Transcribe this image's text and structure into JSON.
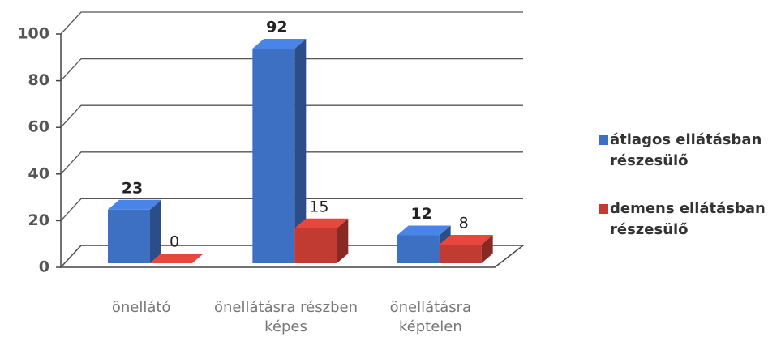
{
  "chart_data": {
    "type": "bar3d",
    "categories": [
      "önellátó",
      "önellátásra részben képes",
      "önellátásra képtelen"
    ],
    "series": [
      {
        "name": "átlagos ellátásban részesülő",
        "color": "#3d6fc2",
        "values": [
          23,
          92,
          12
        ]
      },
      {
        "name": "demens ellátásban részesülő",
        "color": "#c23b33",
        "values": [
          0,
          15,
          8
        ]
      }
    ],
    "ylim": [
      0,
      100
    ],
    "yticks": [
      0,
      20,
      40,
      60,
      80,
      100
    ],
    "grid": true,
    "legend": "right"
  }
}
